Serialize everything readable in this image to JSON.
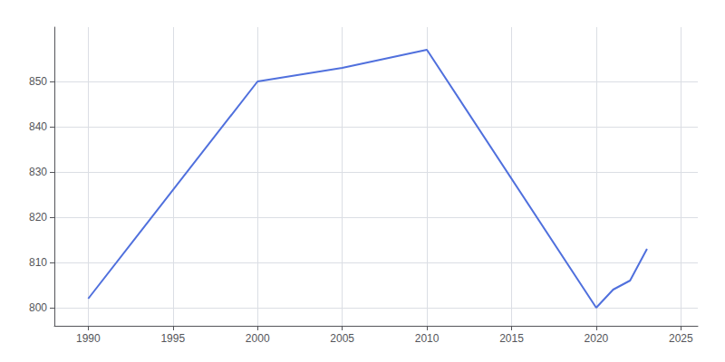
{
  "chart_data": {
    "type": "line",
    "x": [
      1990,
      2000,
      2005,
      2010,
      2020,
      2021,
      2022,
      2023
    ],
    "values": [
      802,
      850,
      853,
      857,
      800,
      804,
      806,
      813
    ],
    "xlim": [
      1988,
      2026
    ],
    "ylim": [
      796,
      862
    ],
    "xticks": [
      1990,
      1995,
      2000,
      2005,
      2010,
      2015,
      2020,
      2025
    ],
    "yticks": [
      800,
      810,
      820,
      830,
      840,
      850
    ],
    "grid": true
  }
}
